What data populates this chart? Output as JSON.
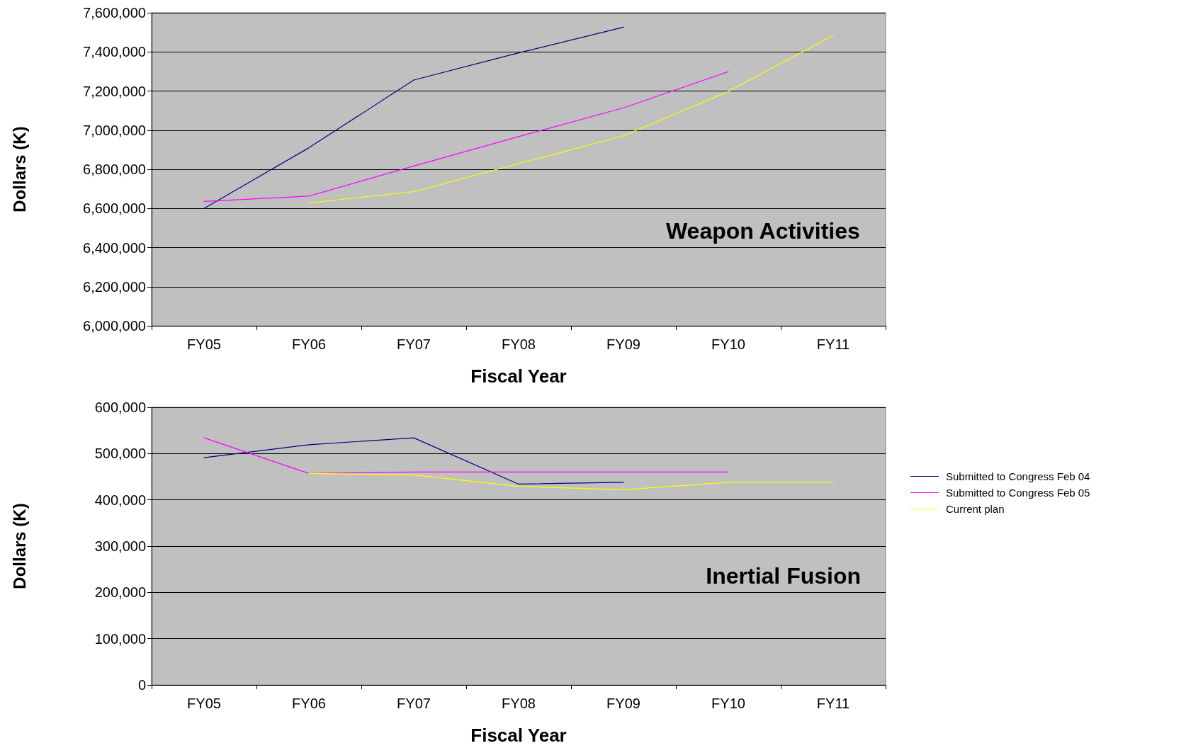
{
  "chart_data": [
    {
      "type": "line",
      "title": "Weapon Activities",
      "xlabel": "Fiscal Year",
      "ylabel": "Dollars (K)",
      "categories": [
        "FY05",
        "FY06",
        "FY07",
        "FY08",
        "FY09",
        "FY10",
        "FY11"
      ],
      "series": [
        {
          "color": "#000080",
          "values": [
            6600000,
            6910000,
            7256000,
            7395000,
            7526000,
            null,
            null
          ]
        },
        {
          "color": "#ff00ff",
          "values": [
            6636000,
            6663000,
            6817000,
            6967000,
            7114000,
            7299000,
            null
          ]
        },
        {
          "color": "#ffff00",
          "values": [
            null,
            6628000,
            6686000,
            6829000,
            6971000,
            7198000,
            7484000
          ]
        }
      ],
      "ylim": [
        6000000,
        7600000
      ],
      "yticks": [
        {
          "value": 6000000,
          "label": "6,000,000"
        },
        {
          "value": 6200000,
          "label": "6,200,000"
        },
        {
          "value": 6400000,
          "label": "6,400,000"
        },
        {
          "value": 6600000,
          "label": "6,600,000"
        },
        {
          "value": 6800000,
          "label": "6,800,000"
        },
        {
          "value": 7000000,
          "label": "7,000,000"
        },
        {
          "value": 7200000,
          "label": "7,200,000"
        },
        {
          "value": 7400000,
          "label": "7,400,000"
        },
        {
          "value": 7600000,
          "label": "7,600,000"
        }
      ],
      "grid": "y",
      "legend": false,
      "marker": "none",
      "line_style": "solid"
    },
    {
      "type": "line",
      "title": "Inertial Fusion",
      "xlabel": "Fiscal Year",
      "ylabel": "Dollars (K)",
      "categories": [
        "FY05",
        "FY06",
        "FY07",
        "FY08",
        "FY09",
        "FY10",
        "FY11"
      ],
      "series": [
        {
          "name": "Submitted to Congress Feb 04",
          "color": "#000080",
          "values": [
            491000,
            519000,
            534000,
            434000,
            438000,
            null,
            null
          ]
        },
        {
          "name": "Submitted to Congress Feb 05",
          "color": "#ff00ff",
          "values": [
            534000,
            457000,
            460000,
            460000,
            460000,
            460000,
            null
          ]
        },
        {
          "name": "Current plan",
          "color": "#ffff00",
          "values": [
            null,
            457000,
            454000,
            429000,
            422000,
            438000,
            438000
          ]
        }
      ],
      "ylim": [
        0,
        600000
      ],
      "yticks": [
        0,
        {
          "value": 100000,
          "label": "100,000"
        },
        {
          "value": 200000,
          "label": "200,000"
        },
        {
          "value": 300000,
          "label": "300,000"
        },
        {
          "value": 400000,
          "label": "400,000"
        },
        {
          "value": 500000,
          "label": "500,000"
        },
        {
          "value": 600000,
          "label": "600,000"
        }
      ],
      "grid": "y",
      "legend": "right",
      "marker": "none",
      "line_style": "solid"
    }
  ]
}
